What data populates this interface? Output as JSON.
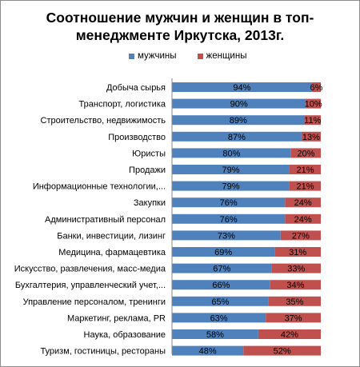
{
  "chart_data": {
    "type": "bar",
    "stacked": true,
    "orientation": "horizontal",
    "title": "Соотношение мужчин и женщин в топ-менеджменте Иркутска, 2013г.",
    "title_lines": [
      "Соотношение мужчин и женщин в топ-",
      "менеджменте Иркутска, 2013г."
    ],
    "legend_position": "top",
    "xlim": [
      0,
      100
    ],
    "grid": false,
    "categories": [
      "Добыча сырья",
      "Транспорт, логистика",
      "Строительство, недвижимость",
      "Производство",
      "Юристы",
      "Продажи",
      "Информационные технологии,...",
      "Закупки",
      "Административный персонал",
      "Банки, инвестиции,  лизинг",
      "Медицина, фармацевтика",
      "Искусство, развлечения, масс-медиа",
      "Бухгалтерия, управленческий учет,...",
      "Управление персоналом, тренинги",
      "Маркетинг, реклама, PR",
      "Наука, образование",
      "Туризм, гостиницы, рестораны"
    ],
    "series": [
      {
        "name": "мужчины",
        "color": "#4f81bd",
        "values": [
          94,
          90,
          89,
          87,
          80,
          79,
          79,
          76,
          76,
          73,
          69,
          67,
          66,
          65,
          63,
          58,
          48
        ],
        "labels": [
          "94%",
          "90%",
          "89%",
          "87%",
          "80%",
          "79%",
          "79%",
          "76%",
          "76%",
          "73%",
          "69%",
          "67%",
          "66%",
          "65%",
          "63%",
          "58%",
          "48%"
        ]
      },
      {
        "name": "женщины",
        "color": "#c0504d",
        "values": [
          6,
          10,
          11,
          13,
          20,
          21,
          21,
          24,
          24,
          27,
          31,
          33,
          34,
          35,
          37,
          42,
          52
        ],
        "labels": [
          "6%",
          "10%",
          "11%",
          "13%",
          "20%",
          "21%",
          "21%",
          "24%",
          "24%",
          "27%",
          "31%",
          "33%",
          "34%",
          "35%",
          "37%",
          "42%",
          "52%"
        ]
      }
    ]
  }
}
